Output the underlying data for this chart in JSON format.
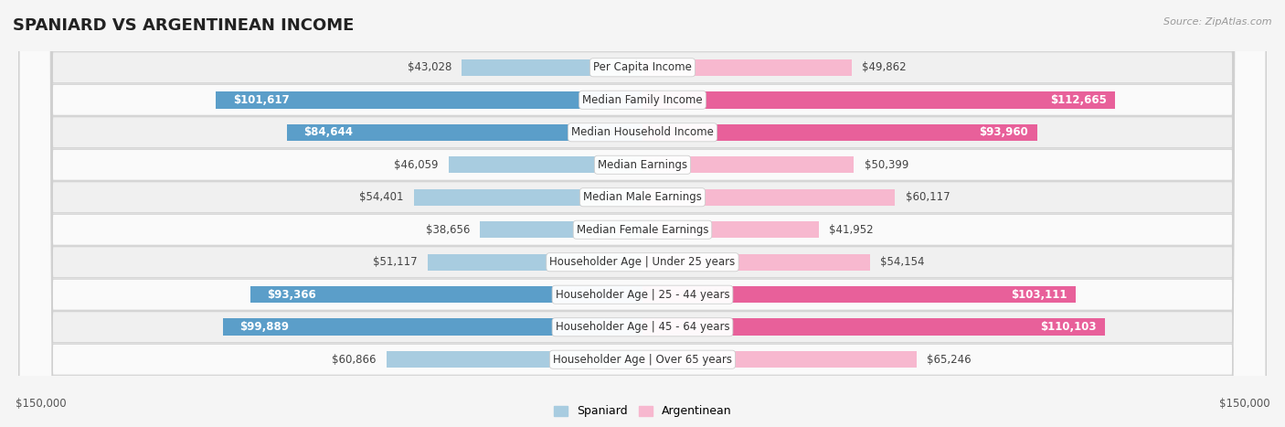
{
  "title": "SPANIARD VS ARGENTINEAN INCOME",
  "source": "Source: ZipAtlas.com",
  "categories": [
    "Per Capita Income",
    "Median Family Income",
    "Median Household Income",
    "Median Earnings",
    "Median Male Earnings",
    "Median Female Earnings",
    "Householder Age | Under 25 years",
    "Householder Age | 25 - 44 years",
    "Householder Age | 45 - 64 years",
    "Householder Age | Over 65 years"
  ],
  "spaniard_values": [
    43028,
    101617,
    84644,
    46059,
    54401,
    38656,
    51117,
    93366,
    99889,
    60866
  ],
  "argentinean_values": [
    49862,
    112665,
    93960,
    50399,
    60117,
    41952,
    54154,
    103111,
    110103,
    65246
  ],
  "spaniard_labels": [
    "$43,028",
    "$101,617",
    "$84,644",
    "$46,059",
    "$54,401",
    "$38,656",
    "$51,117",
    "$93,366",
    "$99,889",
    "$60,866"
  ],
  "argentinean_labels": [
    "$49,862",
    "$112,665",
    "$93,960",
    "$50,399",
    "$60,117",
    "$41,952",
    "$54,154",
    "$103,111",
    "$110,103",
    "$65,246"
  ],
  "spaniard_color_light": "#a8cce0",
  "spaniard_color_dark": "#5b9ec9",
  "argentinean_color_light": "#f7b8cf",
  "argentinean_color_dark": "#e8609a",
  "inside_label_threshold": 70000,
  "max_value": 150000,
  "bg_color": "#f5f5f5",
  "row_bg_even": "#f0f0f0",
  "row_bg_odd": "#fafafa",
  "title_fontsize": 13,
  "cat_fontsize": 8.5,
  "value_fontsize": 8.5,
  "axis_label": "$150,000",
  "legend_spaniard": "Spaniard",
  "legend_argentinean": "Argentinean"
}
